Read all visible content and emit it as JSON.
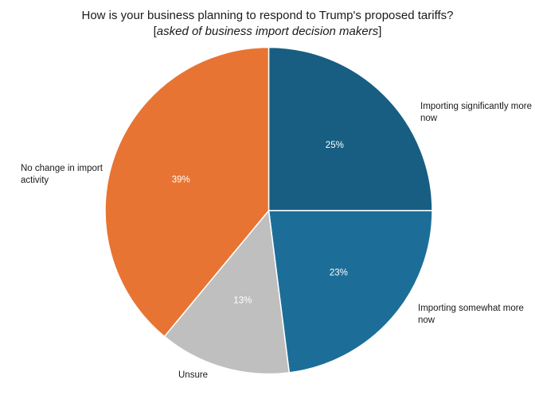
{
  "chart_data": {
    "type": "pie",
    "title": "How is your business planning to respond to Trump's proposed tariffs?",
    "subtitle": {
      "open": "[",
      "text": "asked of business import decision makers",
      "close": "]"
    },
    "slices": [
      {
        "label": "Importing significantly more now",
        "value": 25,
        "value_label": "25%",
        "color": "#175e82",
        "text_color": "#ffffff"
      },
      {
        "label": "Importing somewhat more now",
        "value": 23,
        "value_label": "23%",
        "color": "#1c6e98",
        "text_color": "#ffffff"
      },
      {
        "label": "Unsure",
        "value": 13,
        "value_label": "13%",
        "color": "#bfbfbf",
        "text_color": "#ffffff"
      },
      {
        "label": "No change in import activity",
        "value": 39,
        "value_label": "39%",
        "color": "#e87433",
        "text_color": "#ffffff"
      }
    ],
    "start_angle": "12 o'clock",
    "direction": "clockwise",
    "legend": "none"
  }
}
